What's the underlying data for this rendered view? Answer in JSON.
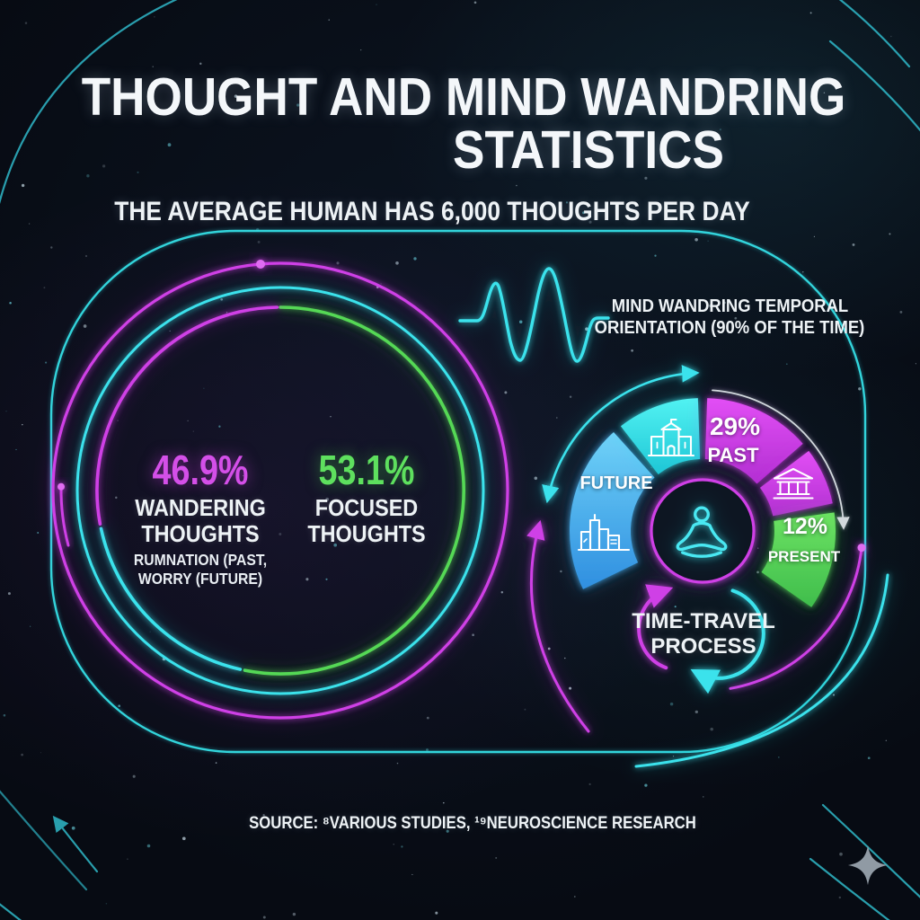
{
  "title": {
    "line1": "THOUGHT AND MIND WANDRING",
    "line2": "STATISTICS"
  },
  "subtitle": "THE AVERAGE HUMAN HAS 6,000 THOUGHTS PER DAY",
  "source": "SOURCE: ⁸VARIOUS STUDIES, ¹⁹NEUROSCIENCE RESEARCH",
  "colors": {
    "cyan": "#3ae2ec",
    "magenta": "#cf3fe6",
    "green": "#55d855",
    "blue": "#45b0f0",
    "white_text": "#eef3f6",
    "teal_line": "#2fb9c9",
    "star_gray": "#98a2ac",
    "background": "#070b13"
  },
  "icons": {
    "waveform": "waveform-icon",
    "city": "city-icon",
    "school": "school-icon",
    "bank": "bank-icon",
    "meditation": "meditation-icon",
    "sparkle": "sparkle-icon"
  },
  "chart_data": [
    {
      "type": "donut",
      "name": "daily-thoughts-split",
      "series": [
        {
          "label": "WANDERING THOUGHTS",
          "sublabel": "RUMNATION (PAST, WORRY (FUTURE)",
          "value": 46.9,
          "value_label": "46.9%",
          "color": "#cf3fe6"
        },
        {
          "label": "FOCUSED THOUGHTS",
          "value": 53.1,
          "value_label": "53.1%",
          "color": "#55d855"
        }
      ],
      "layout": {
        "center": [
          312,
          546
        ],
        "ring_radii": [
          253,
          226,
          204
        ],
        "accent_split": [
          192.7,
          258
        ]
      }
    },
    {
      "type": "donut",
      "name": "mind-wandering-temporal-orientation",
      "title": "MIND WANDRING TEMPORAL ORIENTATION (90% OF THE TIME)",
      "title_lines": [
        "MIND WANDRING TEMPORAL",
        "ORIENTATION (90% OF THE TIME)"
      ],
      "process_label": "TIME-TRAVEL PROCESS",
      "segments": [
        {
          "name": "future",
          "label": "FUTURE",
          "icon": "city-icon",
          "color": "#45b0f0",
          "grad": "blue",
          "start": 244,
          "end": 318
        },
        {
          "name": "school",
          "icon": "school-icon",
          "color": "#35e2e8",
          "grad": "cyan",
          "start": 322,
          "end": 358
        },
        {
          "name": "past",
          "value_label": "29%",
          "label": "PAST",
          "color": "#d23ee8",
          "grad": "magenta",
          "start": 2,
          "end": 49
        },
        {
          "name": "institution",
          "icon": "bank-icon",
          "color": "#c93be0",
          "grad": "magenta",
          "start": 53,
          "end": 78
        },
        {
          "name": "present",
          "value_label": "12%",
          "label": "PRESENT",
          "color": "#55d855",
          "grad": "green",
          "start": 82,
          "end": 125
        }
      ],
      "layout": {
        "center": [
          782,
          591
        ],
        "inner_radius": 80,
        "outer_radius": 148,
        "center_icon": "meditation-icon"
      }
    }
  ]
}
